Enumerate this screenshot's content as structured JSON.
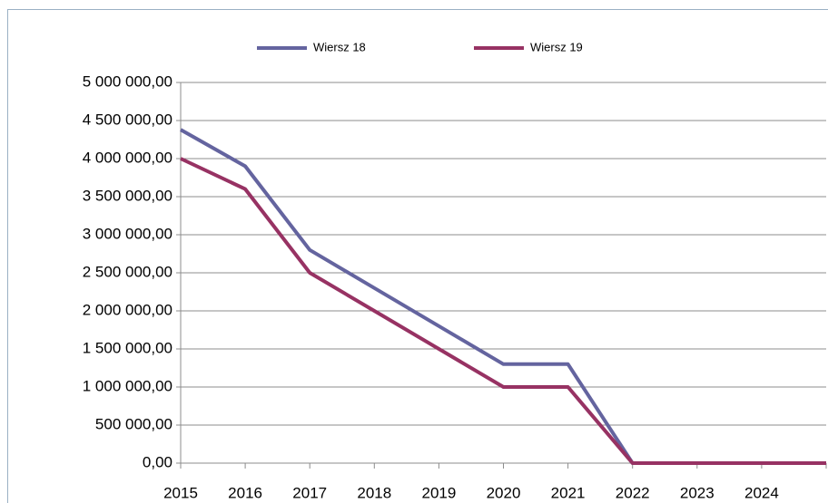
{
  "chart_data": {
    "type": "line",
    "categories": [
      "2015",
      "2016",
      "2017",
      "2018",
      "2019",
      "2020",
      "2021",
      "2022",
      "2023",
      "2024",
      null
    ],
    "series": [
      {
        "name": "Wiersz 18",
        "color": "#64649f",
        "values": [
          4380000,
          3900000,
          2800000,
          2300000,
          1800000,
          1300000,
          1300000,
          0,
          0,
          0,
          0
        ]
      },
      {
        "name": "Wiersz 19",
        "color": "#973263",
        "values": [
          4000000,
          3600000,
          2500000,
          2000000,
          1500000,
          1000000,
          1000000,
          0,
          0,
          0,
          0
        ]
      }
    ],
    "ylim": [
      0,
      5000000
    ],
    "yticks": [
      {
        "value": 0,
        "label": "0,00"
      },
      {
        "value": 500000,
        "label": "500 000,00"
      },
      {
        "value": 1000000,
        "label": "1 000 000,00"
      },
      {
        "value": 1500000,
        "label": "1 500 000,00"
      },
      {
        "value": 2000000,
        "label": "2 000 000,00"
      },
      {
        "value": 2500000,
        "label": "2 500 000,00"
      },
      {
        "value": 3000000,
        "label": "3 000 000,00"
      },
      {
        "value": 3500000,
        "label": "3 500 000,00"
      },
      {
        "value": 4000000,
        "label": "4 000 000,00"
      },
      {
        "value": 4500000,
        "label": "4 500 000,00"
      },
      {
        "value": 5000000,
        "label": "5 000 000,00"
      }
    ],
    "grid": true,
    "legend": "top"
  }
}
